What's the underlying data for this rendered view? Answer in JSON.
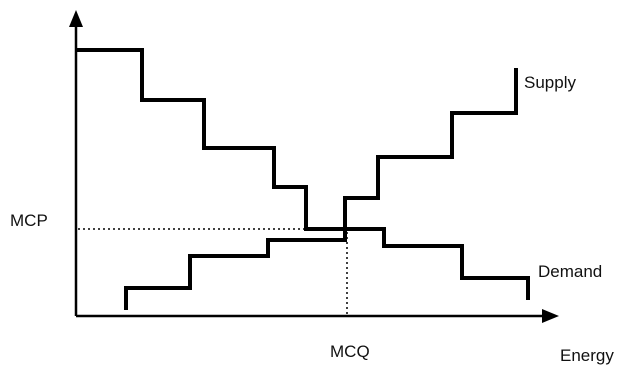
{
  "labels": {
    "supply": "Supply",
    "demand": "Demand",
    "mcp": "MCP",
    "mcq": "MCQ",
    "x_axis": "Energy"
  },
  "colors": {
    "line": "#000000",
    "background": "#ffffff"
  }
}
